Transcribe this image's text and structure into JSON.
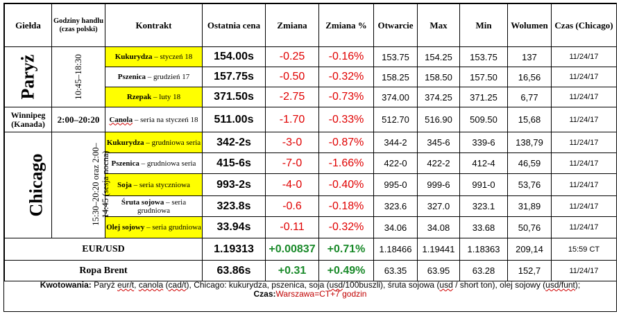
{
  "headers": {
    "exchange": "Giełda",
    "hours": "Godziny handlu (czas polski)",
    "contract": "Kontrakt",
    "last": "Ostatnia cena",
    "change": "Zmiana",
    "change_pct": "Zmiana %",
    "open": "Otwarcie",
    "max": "Max",
    "min": "Min",
    "volume": "Wolumen",
    "time": "Czas (Chicago)"
  },
  "groups": {
    "paris": {
      "name": "Paryż",
      "hours": "10:45–18:30"
    },
    "winnipeg": {
      "name": "Winnipeg (Kanada)",
      "hours": "2:00–20:20"
    },
    "chicago": {
      "name": "Chicago",
      "hours": "15:30–20:20 oraz 2:00–14:45 (sesja nocna)"
    }
  },
  "rows": [
    {
      "commodity": "Kukurydza",
      "term": " – styczeń 18",
      "last": "154.00s",
      "change": "-0.25",
      "change_pct": "-0.16%",
      "open": "153.75",
      "max": "154.25",
      "min": "153.75",
      "volume": "137",
      "time": "11/24/17"
    },
    {
      "commodity": "Pszenica",
      "term": " – grudzień 17",
      "last": "157.75s",
      "change": "-0.50",
      "change_pct": "-0.32%",
      "open": "158.25",
      "max": "158.50",
      "min": "157.50",
      "volume": "16,56",
      "time": "11/24/17"
    },
    {
      "commodity": "Rzepak",
      "term": " – luty 18",
      "last": "371.50s",
      "change": "-2.75",
      "change_pct": "-0.73%",
      "open": "374.00",
      "max": "374.25",
      "min": "371.25",
      "volume": "6,77",
      "time": "11/24/17"
    },
    {
      "commodity": "Canola",
      "term": " – seria na styczeń 18",
      "last": "511.00s",
      "change": "-1.70",
      "change_pct": "-0.33%",
      "open": "512.70",
      "max": "516.90",
      "min": "509.50",
      "volume": "15,68",
      "time": "11/24/17"
    },
    {
      "commodity": "Kukurydza",
      "term": " – grudniowa seria",
      "last": "342-2s",
      "change": "-3-0",
      "change_pct": "-0.87%",
      "open": "344-2",
      "max": "345-6",
      "min": "339-6",
      "volume": "138,79",
      "time": "11/24/17"
    },
    {
      "commodity": "Pszenica",
      "term": " – grudniowa seria",
      "last": "415-6s",
      "change": "-7-0",
      "change_pct": "-1.66%",
      "open": "422-0",
      "max": "422-2",
      "min": "412-4",
      "volume": "46,59",
      "time": "11/24/17"
    },
    {
      "commodity": "Soja",
      "term": " – seria styczniowa",
      "last": "993-2s",
      "change": "-4-0",
      "change_pct": "-0.40%",
      "open": "995-0",
      "max": "999-6",
      "min": "991-0",
      "volume": "53,76",
      "time": "11/24/17"
    },
    {
      "commodity": "Śruta sojowa",
      "term": " – seria grudniowa",
      "last": "323.8s",
      "change": "-0.6",
      "change_pct": "-0.18%",
      "open": "323.6",
      "max": "327.0",
      "min": "323.1",
      "volume": "31,89",
      "time": "11/24/17"
    },
    {
      "commodity": "Olej sojowy",
      "term": " – seria grudniowa",
      "last": "33.94s",
      "change": "-0.11",
      "change_pct": "-0.32%",
      "open": "34.06",
      "max": "34.08",
      "min": "33.68",
      "volume": "50,76",
      "time": "11/24/17"
    },
    {
      "commodity": "EUR/USD",
      "term": "",
      "last": "1.19313",
      "change": "+0.00837",
      "change_pct": "+0.71%",
      "open": "1.18466",
      "max": "1.19441",
      "min": "1.18363",
      "volume": "209,14",
      "time": "15:59 CT"
    },
    {
      "commodity": "Ropa Brent",
      "term": "",
      "last": "63.86s",
      "change": "+0.31",
      "change_pct": "+0.49%",
      "open": "63.35",
      "max": "63.95",
      "min": "63.28",
      "volume": "152,7",
      "time": "11/24/17"
    }
  ],
  "footer": {
    "label": "Kwotowania:",
    "p1": " Paryż ",
    "w_eurt": "eur/t",
    "p2": ", ",
    "w_canola": "canola",
    "p3": " (",
    "w_cadt": "cad/t",
    "p4": "), Chicago",
    "p5": ": kukurydza, pszenica, soja (",
    "w_usd1": "usd",
    "p6": "/100buszli), śruta sojowa (",
    "w_usd2": "usd",
    "p7": " / short ton), olej sojowy (",
    "w_usdfunt": "usd/funt",
    "p8": ");",
    "time_label": "Czas:",
    "time_value": "Warszawa=CT+7 godzin"
  },
  "colors": {
    "highlight": "#ffff00",
    "negative": "#e00000",
    "positive": "#1a8a2a"
  }
}
